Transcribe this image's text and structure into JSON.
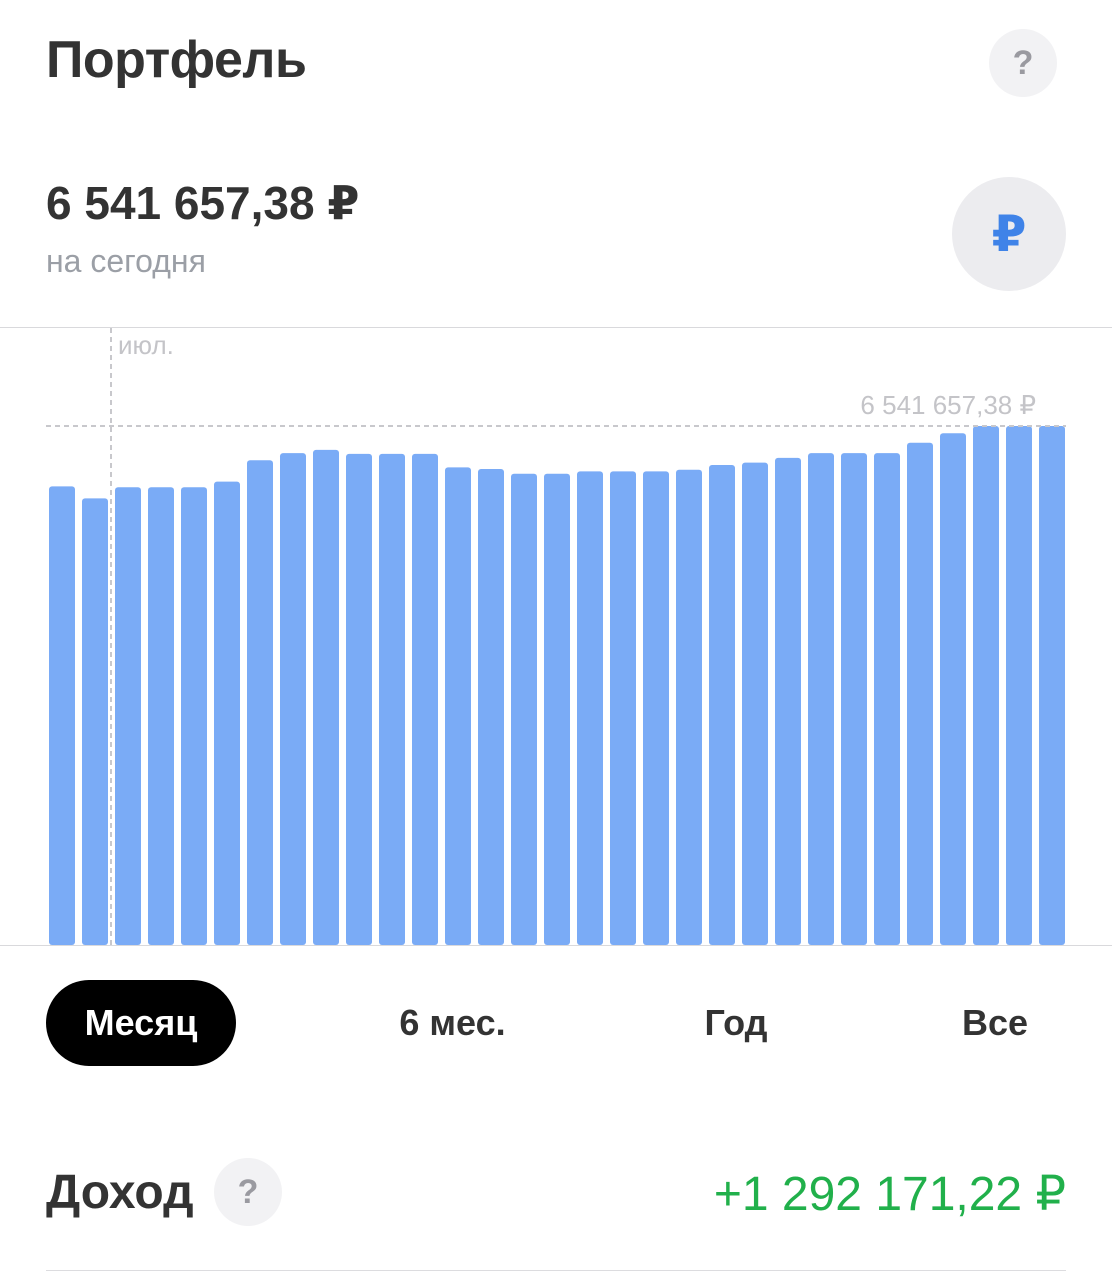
{
  "header": {
    "title": "Портфель",
    "help_label": "?"
  },
  "balance": {
    "amount": "6 541 657,38 ₽",
    "subtitle": "на сегодня",
    "currency_label": "₽"
  },
  "chart_data": {
    "type": "bar",
    "month_label": "июл.",
    "max_label": "6 541 657,38 ₽",
    "values": [
      5780000,
      5630000,
      5770000,
      5770000,
      5770000,
      5840000,
      6110000,
      6200000,
      6240000,
      6190000,
      6190000,
      6190000,
      6020000,
      6000000,
      5940000,
      5940000,
      5970000,
      5970000,
      5970000,
      5990000,
      6050000,
      6080000,
      6140000,
      6200000,
      6200000,
      6200000,
      6330000,
      6450000,
      6541657.38,
      6541657.38,
      6541657.38
    ],
    "ylim": [
      0,
      6541657.38
    ],
    "bar_color": "#7aabf6"
  },
  "periods": [
    {
      "label": "Месяц",
      "active": true
    },
    {
      "label": "6 мес.",
      "active": false
    },
    {
      "label": "Год",
      "active": false
    },
    {
      "label": "Все",
      "active": false
    }
  ],
  "income": {
    "label": "Доход",
    "help_label": "?",
    "value": "+1 292 171,22 ₽",
    "value_color": "#21b04b"
  }
}
